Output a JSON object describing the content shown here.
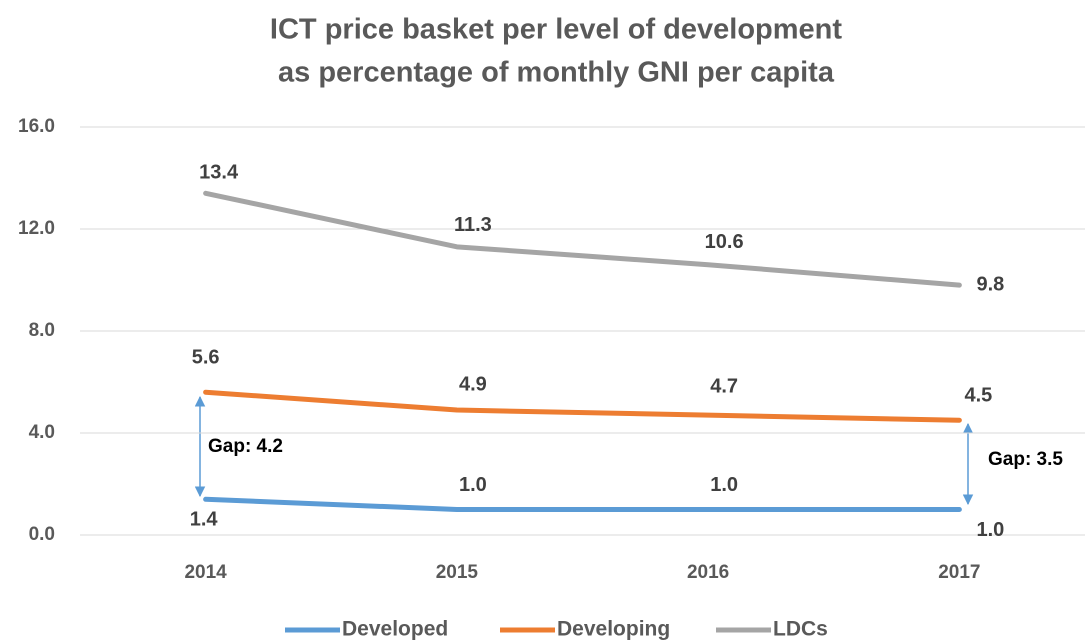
{
  "chart_data": {
    "type": "line",
    "title": [
      "ICT price basket per level of development",
      "as percentage of monthly GNI per capita"
    ],
    "categories": [
      "2014",
      "2015",
      "2016",
      "2017"
    ],
    "series": [
      {
        "name": "Developed",
        "color": "#5b9bd5",
        "values": [
          1.4,
          1.0,
          1.0,
          1.0
        ],
        "value_labels": [
          "1.4",
          "1.0",
          "1.0",
          "1.0"
        ]
      },
      {
        "name": "Developing",
        "color": "#ed7d31",
        "values": [
          5.6,
          4.9,
          4.7,
          4.5
        ]
      },
      {
        "name": "LDCs",
        "color": "#a5a5a5",
        "values": [
          13.4,
          11.3,
          10.6,
          9.8
        ]
      }
    ],
    "ylim": [
      0,
      16
    ],
    "yticks": [
      {
        "value": 0,
        "label": "0.0"
      },
      {
        "value": 4,
        "label": "4.0"
      },
      {
        "value": 8,
        "label": "8.0"
      },
      {
        "value": 12,
        "label": "12.0"
      },
      {
        "value": 16,
        "label": "16.0"
      }
    ],
    "grid": true,
    "legend": "bottom",
    "annotations": [
      "Gap: 4.2",
      "Gap: 3.5"
    ]
  }
}
